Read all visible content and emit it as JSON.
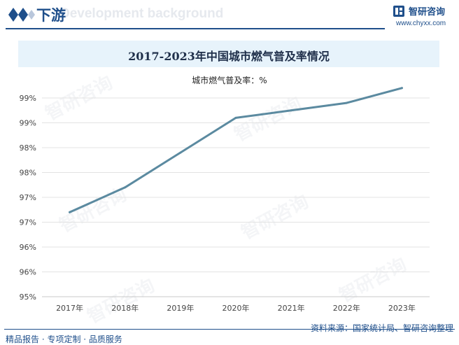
{
  "header": {
    "section_title": "下游",
    "background_text": "Development background",
    "brand_name": "智研咨询",
    "brand_url": "www.chyxx.com"
  },
  "watermark_text": "智研咨询",
  "colors": {
    "brand": "#1f4f8b",
    "line": "#5b8aa0",
    "title_band": "#e7f3fb",
    "grid": "#e3e3e3"
  },
  "chart_data": {
    "type": "line",
    "title": "2017-2023年中国城市燃气普及率情况",
    "unit_label": "城市燃气普及率：%",
    "categories": [
      "2017年",
      "2018年",
      "2019年",
      "2020年",
      "2021年",
      "2022年",
      "2023年"
    ],
    "series": [
      {
        "name": "",
        "values": [
          96.7,
          97.2,
          97.9,
          98.6,
          98.75,
          98.9,
          99.2
        ]
      }
    ],
    "y_tick_values": [
      95,
      95.5,
      96,
      96.5,
      97,
      97.5,
      98,
      98.5,
      99
    ],
    "y_tick_labels": [
      "95%",
      "96%",
      "96%",
      "97%",
      "97%",
      "98%",
      "98%",
      "99%",
      "99%"
    ],
    "ylim": [
      95,
      99
    ],
    "grid": true,
    "legend": "none"
  },
  "footer": {
    "left": "精品报告 · 专项定制 · 品质服务",
    "source": "资料来源：国家统计局、智研咨询整理"
  }
}
